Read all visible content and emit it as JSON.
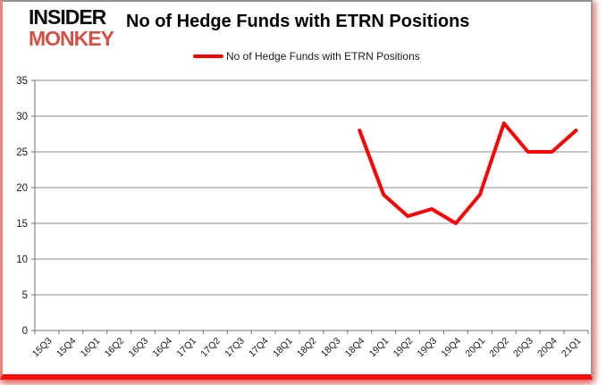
{
  "logo": {
    "line1": "INSIDER",
    "line2": "MONKEY"
  },
  "header": {
    "title": "No of Hedge Funds with ETRN Positions"
  },
  "legend": {
    "label": "No of Hedge Funds with ETRN Positions"
  },
  "colors": {
    "series": "#ff0000",
    "logo_text": "#0d0d0d",
    "logo_accent": "#d25145",
    "gridline": "#8e8e8e",
    "axis": "#707070",
    "tick_label": "#1a1a1a",
    "panel_border_pink": "#f0837a",
    "bottom_bar_red": "#fb0f0a"
  },
  "chart_data": {
    "type": "line",
    "title": "No of Hedge Funds with ETRN Positions",
    "categories": [
      "15Q3",
      "15Q4",
      "16Q1",
      "16Q2",
      "16Q3",
      "16Q4",
      "17Q1",
      "17Q2",
      "17Q3",
      "17Q4",
      "18Q1",
      "18Q2",
      "18Q3",
      "18Q4",
      "19Q1",
      "19Q2",
      "19Q3",
      "19Q4",
      "20Q1",
      "20Q2",
      "20Q3",
      "20Q4",
      "21Q1"
    ],
    "series": [
      {
        "name": "No of Hedge Funds with ETRN Positions",
        "color": "#ff0000",
        "values": [
          null,
          null,
          null,
          null,
          null,
          null,
          null,
          null,
          null,
          null,
          null,
          null,
          null,
          28,
          19,
          16,
          17,
          15,
          19,
          29,
          25,
          25,
          28
        ]
      }
    ],
    "ylim": [
      0,
      35
    ],
    "yticks": [
      0,
      5,
      10,
      15,
      20,
      25,
      30,
      35
    ],
    "xlabel": "",
    "ylabel": "",
    "grid": true,
    "legend_position": "top"
  }
}
